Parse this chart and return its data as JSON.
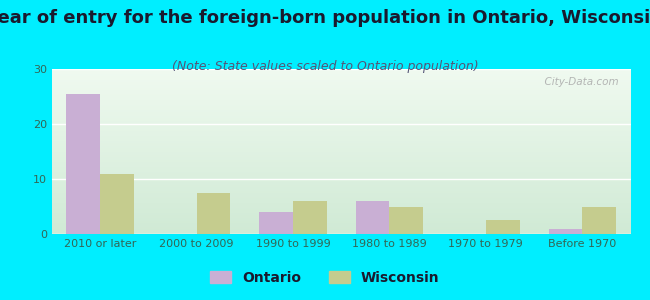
{
  "title": "Year of entry for the foreign-born population in Ontario, Wisconsin",
  "subtitle": "(Note: State values scaled to Ontario population)",
  "categories": [
    "2010 or later",
    "2000 to 2009",
    "1990 to 1999",
    "1980 to 1989",
    "1970 to 1979",
    "Before 1970"
  ],
  "ontario_values": [
    25.5,
    0,
    4.0,
    6.0,
    0,
    1.0
  ],
  "wisconsin_values": [
    11.0,
    7.5,
    6.0,
    5.0,
    2.5,
    5.0
  ],
  "ontario_color": "#c9afd4",
  "wisconsin_color": "#c5cc8e",
  "background_outer": "#00eeff",
  "bg_grad_top": "#f0faf0",
  "bg_grad_bottom": "#d0ead5",
  "ylim": [
    0,
    30
  ],
  "yticks": [
    0,
    10,
    20,
    30
  ],
  "bar_width": 0.35,
  "legend_ontario": "Ontario",
  "legend_wisconsin": "Wisconsin",
  "title_fontsize": 13,
  "subtitle_fontsize": 9,
  "tick_fontsize": 8,
  "legend_fontsize": 10,
  "title_color": "#1a1a2e",
  "subtitle_color": "#555577",
  "tick_color": "#336655",
  "watermark_text": "  City-Data.com",
  "grid_color": "#ffffff"
}
